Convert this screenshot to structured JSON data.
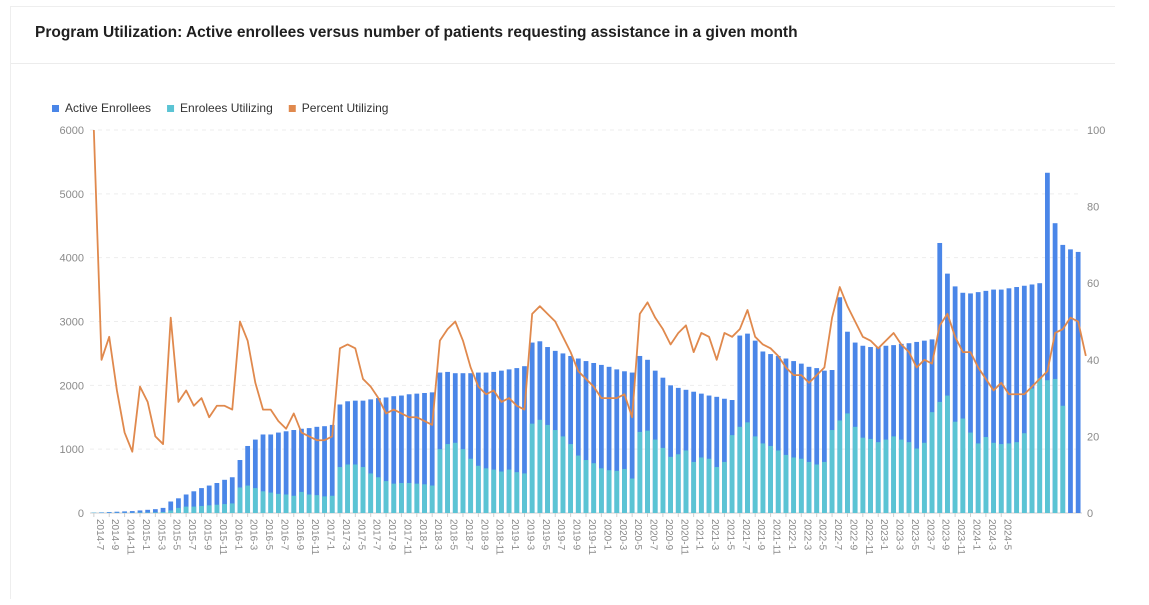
{
  "chart_data": {
    "type": "bar",
    "title": "Program Utilization: Active enrollees versus number of patients requesting assistance in a given month",
    "legend_position": "top-left",
    "grid": true,
    "y_left": {
      "min": 0,
      "max": 6000,
      "ticks": [
        "0",
        "1000",
        "2000",
        "3000",
        "4000",
        "5000",
        "6000"
      ]
    },
    "y_right": {
      "min": 0,
      "max": 100,
      "ticks": [
        "0",
        "20",
        "40",
        "60",
        "80",
        "100"
      ]
    },
    "series": [
      {
        "name": "Active Enrollees",
        "type": "bar",
        "axis": "left",
        "color": "#4a86e8",
        "values": [
          5,
          10,
          15,
          20,
          25,
          30,
          40,
          50,
          60,
          80,
          180,
          230,
          290,
          340,
          390,
          430,
          470,
          520,
          560,
          830,
          1050,
          1150,
          1230,
          1230,
          1260,
          1280,
          1300,
          1320,
          1330,
          1350,
          1360,
          1380,
          1700,
          1750,
          1760,
          1760,
          1780,
          1800,
          1810,
          1830,
          1840,
          1860,
          1870,
          1880,
          1890,
          2200,
          2210,
          2190,
          2190,
          2190,
          2200,
          2200,
          2210,
          2230,
          2250,
          2270,
          2300,
          2670,
          2690,
          2600,
          2540,
          2500,
          2460,
          2420,
          2380,
          2350,
          2320,
          2290,
          2250,
          2220,
          2200,
          2460,
          2400,
          2230,
          2120,
          2000,
          1960,
          1930,
          1900,
          1870,
          1840,
          1820,
          1790,
          1770,
          2780,
          2810,
          2700,
          2530,
          2490,
          2460,
          2420,
          2380,
          2340,
          2290,
          2270,
          2230,
          2240,
          3380,
          2840,
          2670,
          2620,
          2600,
          2600,
          2620,
          2630,
          2650,
          2660,
          2680,
          2700,
          2720,
          4230,
          3750,
          3550,
          3450,
          3440,
          3460,
          3480,
          3500,
          3500,
          3520,
          3540,
          3560,
          3580,
          3600,
          5330,
          4540,
          4200,
          4130,
          4090
        ]
      },
      {
        "name": "Enrolees Utilizing",
        "type": "bar",
        "axis": "left",
        "color": "#5bc4d4",
        "values": [
          5,
          4,
          4,
          4,
          4,
          4,
          8,
          8,
          10,
          15,
          40,
          80,
          100,
          100,
          110,
          120,
          130,
          140,
          150,
          400,
          430,
          390,
          340,
          320,
          300,
          290,
          270,
          330,
          290,
          280,
          260,
          270,
          720,
          760,
          760,
          720,
          620,
          560,
          500,
          460,
          470,
          470,
          460,
          450,
          430,
          1000,
          1080,
          1100,
          1000,
          850,
          740,
          700,
          680,
          650,
          680,
          640,
          620,
          1400,
          1460,
          1380,
          1300,
          1200,
          1080,
          900,
          830,
          780,
          700,
          670,
          660,
          690,
          540,
          1270,
          1290,
          1150,
          1020,
          880,
          920,
          980,
          800,
          870,
          850,
          720,
          800,
          1220,
          1350,
          1420,
          1200,
          1090,
          1050,
          980,
          910,
          870,
          850,
          800,
          760,
          800,
          1300,
          1450,
          1560,
          1350,
          1180,
          1160,
          1110,
          1150,
          1200,
          1150,
          1110,
          1010,
          1100,
          1580,
          1740,
          1840,
          1430,
          1480,
          1260,
          1090,
          1190,
          1100,
          1080,
          1090,
          1110,
          1250,
          1950,
          2110,
          2080,
          2100,
          1680
        ]
      },
      {
        "name": "Percent Utilizing",
        "type": "line",
        "axis": "right",
        "color": "#e0894d",
        "values": [
          100,
          40,
          46,
          32,
          21,
          16,
          33,
          29,
          20,
          18,
          51,
          29,
          32,
          28,
          30,
          25,
          28,
          28,
          27,
          50,
          45,
          34,
          27,
          27,
          24,
          22,
          26,
          21,
          20,
          19,
          19,
          20,
          43,
          44,
          43,
          35,
          33,
          30,
          26,
          27,
          26,
          25,
          25,
          24,
          23,
          45,
          48,
          50,
          45,
          38,
          33,
          31,
          32,
          29,
          30,
          28,
          27,
          52,
          54,
          52,
          50,
          46,
          42,
          37,
          35,
          33,
          30,
          30,
          30,
          31,
          25,
          52,
          55,
          51,
          48,
          44,
          47,
          49,
          42,
          47,
          46,
          40,
          47,
          46,
          48,
          53,
          46,
          44,
          43,
          41,
          38,
          36,
          36,
          34,
          36,
          38,
          51,
          59,
          54,
          50,
          46,
          45,
          43,
          45,
          47,
          44,
          42,
          38,
          40,
          39,
          49,
          52,
          46,
          42,
          42,
          38,
          35,
          32,
          34,
          31,
          31,
          31,
          33,
          35,
          37,
          47,
          48,
          51,
          50,
          41
        ]
      }
    ],
    "x_tick_labels": [
      "2014-7",
      "2014-9",
      "2014-11",
      "2015-1",
      "2015-3",
      "2015-5",
      "2015-7",
      "2015-9",
      "2015-11",
      "2016-1",
      "2016-3",
      "2016-5",
      "2016-7",
      "2016-9",
      "2016-11",
      "2017-1",
      "2017-3",
      "2017-5",
      "2017-7",
      "2017-9",
      "2017-11",
      "2018-1",
      "2018-3",
      "2018-5",
      "2018-7",
      "2018-9",
      "2018-11",
      "2019-1",
      "2019-3",
      "2019-5",
      "2019-7",
      "2019-9",
      "2019-11",
      "2020-1",
      "2020-3",
      "2020-5",
      "2020-7",
      "2020-9",
      "2020-11",
      "2021-1",
      "2021-3",
      "2021-5",
      "2021-7",
      "2021-9",
      "2021-11",
      "2022-1",
      "2022-3",
      "2022-5",
      "2022-7",
      "2022-9",
      "2022-11",
      "2023-1",
      "2023-3",
      "2023-5",
      "2023-7",
      "2023-9",
      "2023-11",
      "2024-1",
      "2024-3",
      "2024-5"
    ]
  }
}
